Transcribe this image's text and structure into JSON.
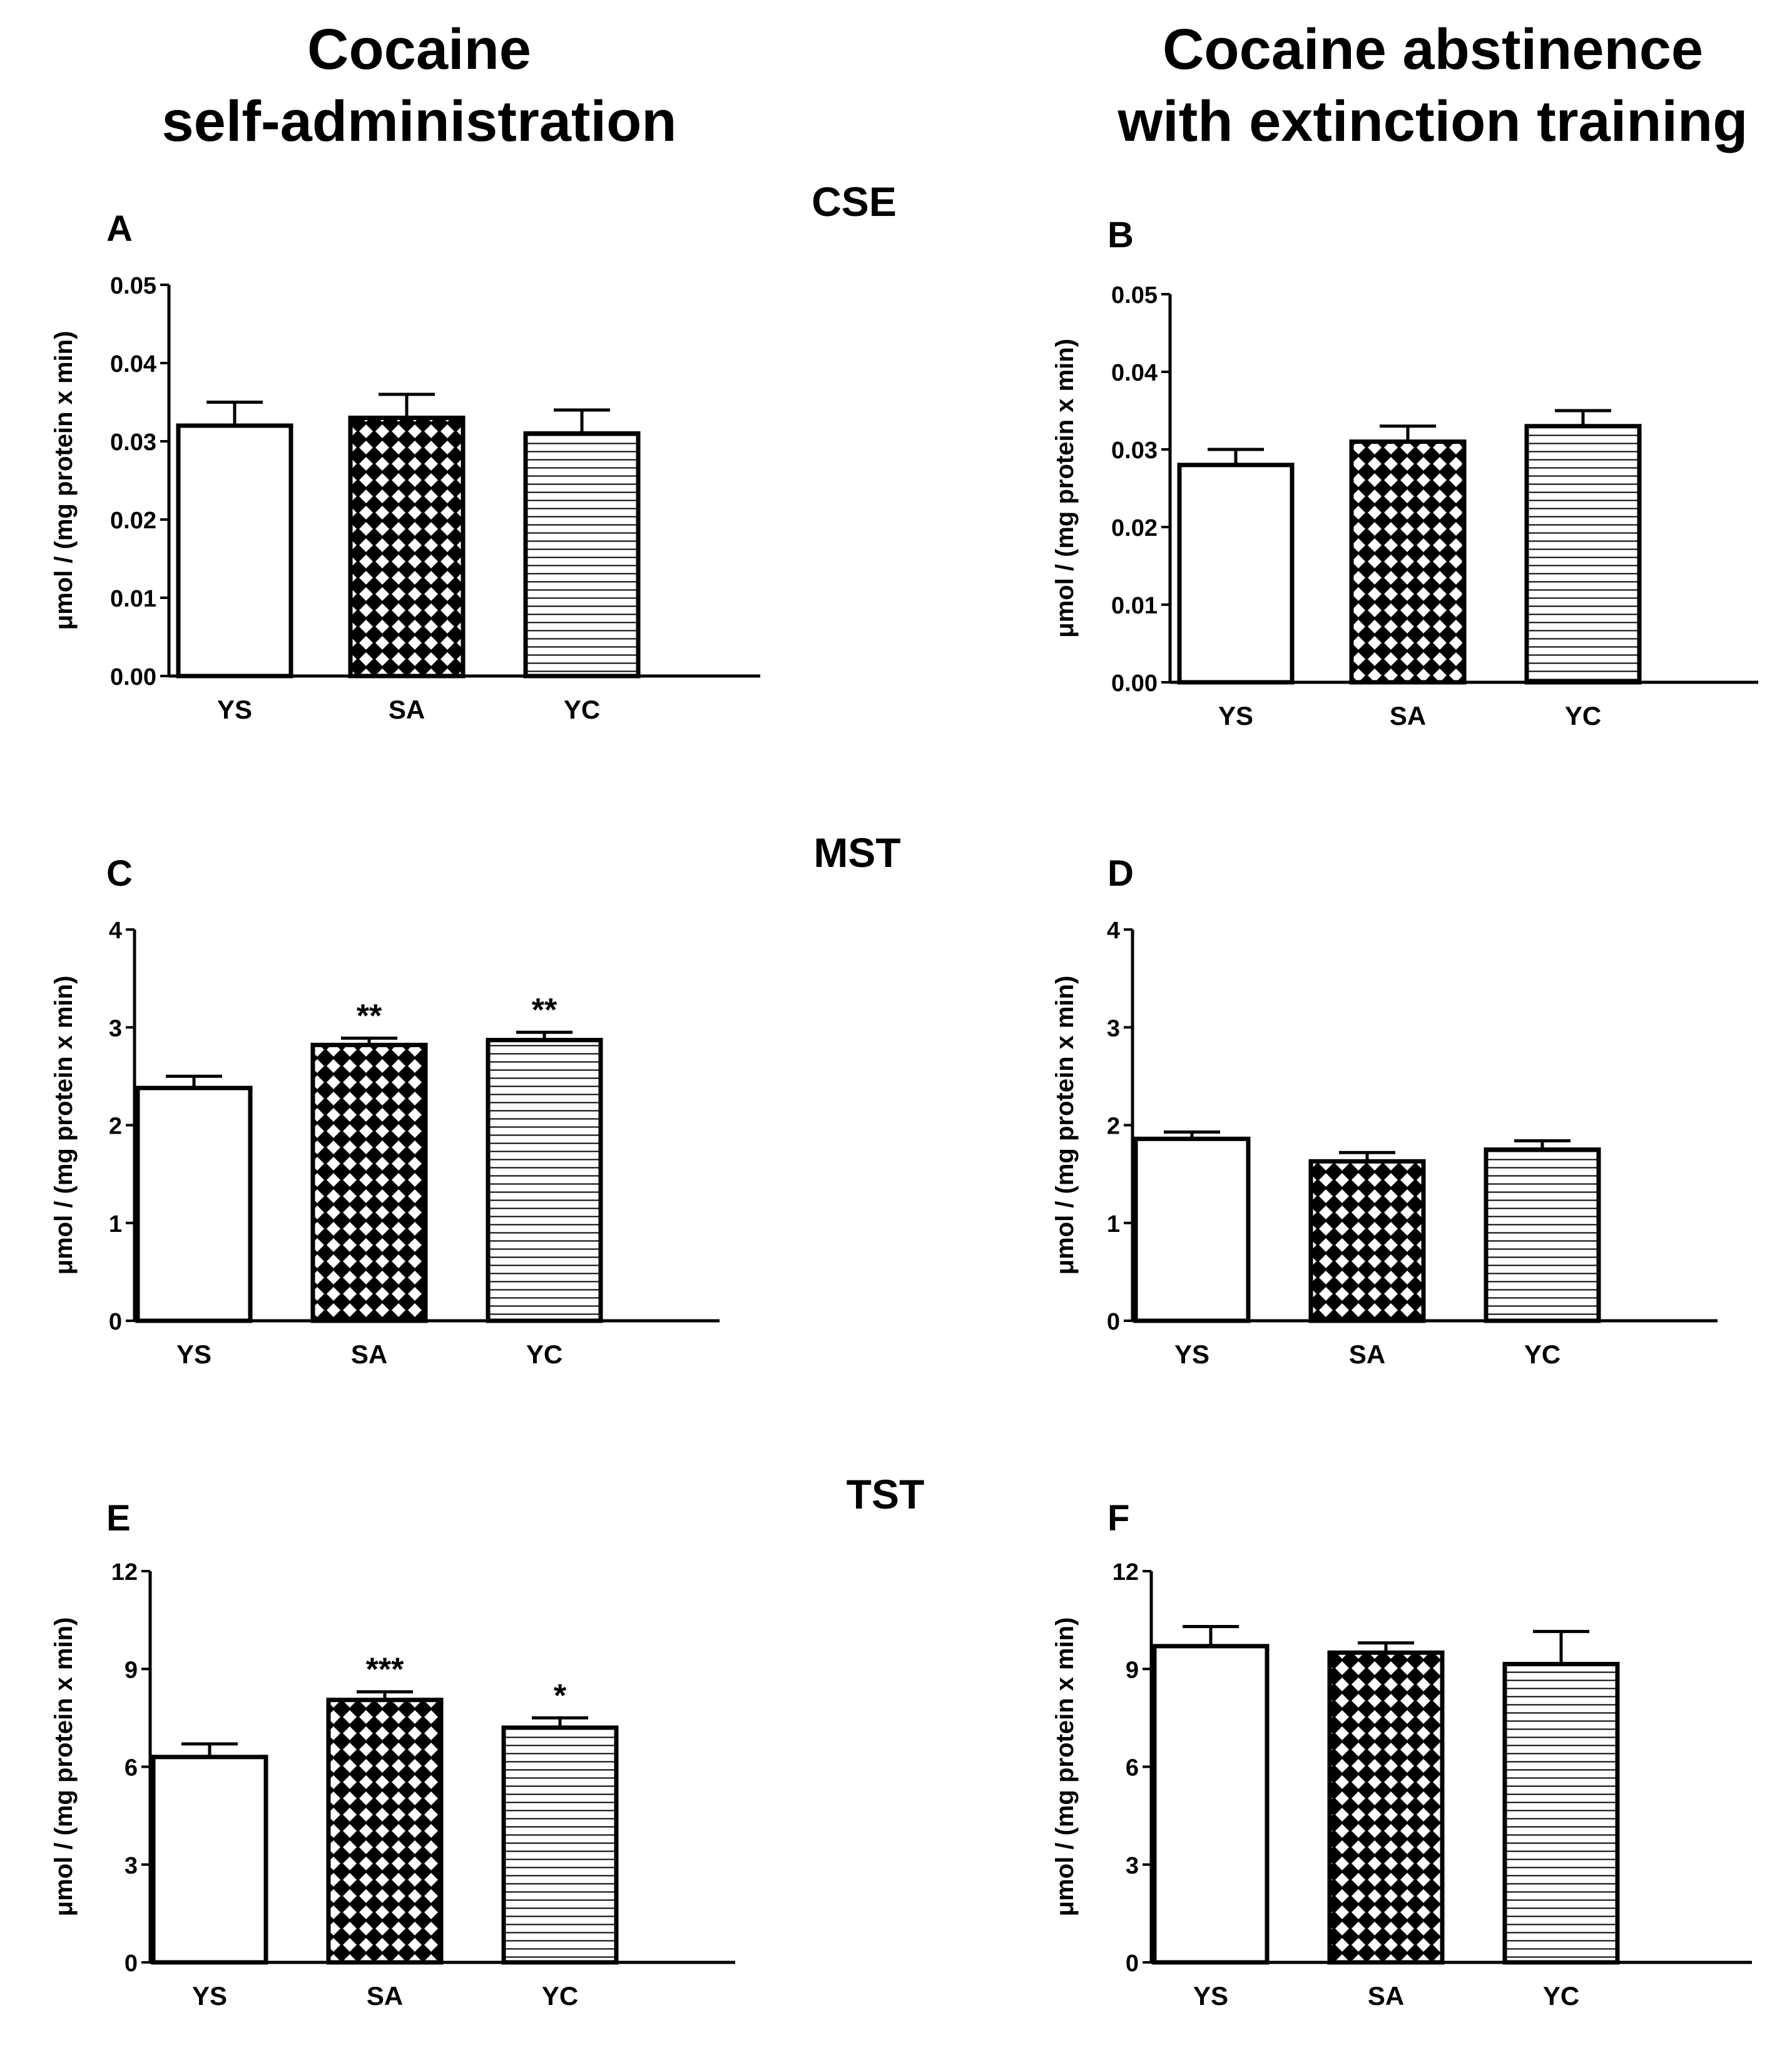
{
  "column_headers": {
    "left_line1": "Cocaine",
    "left_line2": "self-administration",
    "right_line1": "Cocaine abstinence",
    "right_line2": "with extinction training"
  },
  "row_titles": [
    "CSE",
    "MST",
    "TST"
  ],
  "colors": {
    "ink": "#000000",
    "background": "#ffffff"
  },
  "chart_data": [
    {
      "panel": "A",
      "type": "bar",
      "title": "CSE",
      "categories": [
        "YS",
        "SA",
        "YC"
      ],
      "values": [
        0.032,
        0.033,
        0.031
      ],
      "errors": [
        0.003,
        0.003,
        0.003
      ],
      "patterns": [
        "none",
        "crosshatch",
        "horizontal-lines"
      ],
      "significance": [
        "",
        "",
        ""
      ],
      "ylabel": "μmol / (mg protein x min)",
      "ylim": [
        0,
        0.05
      ],
      "yticks": [
        "0.00",
        "0.01",
        "0.02",
        "0.03",
        "0.04",
        "0.05"
      ]
    },
    {
      "panel": "B",
      "type": "bar",
      "title": "CSE",
      "categories": [
        "YS",
        "SA",
        "YC"
      ],
      "values": [
        0.028,
        0.031,
        0.033
      ],
      "errors": [
        0.002,
        0.002,
        0.002
      ],
      "patterns": [
        "none",
        "crosshatch",
        "horizontal-lines"
      ],
      "significance": [
        "",
        "",
        ""
      ],
      "ylabel": "μmol / (mg protein x min)",
      "ylim": [
        0,
        0.05
      ],
      "yticks": [
        "0.00",
        "0.01",
        "0.02",
        "0.03",
        "0.04",
        "0.05"
      ]
    },
    {
      "panel": "C",
      "type": "bar",
      "title": "MST",
      "categories": [
        "YS",
        "SA",
        "YC"
      ],
      "values": [
        2.38,
        2.82,
        2.87
      ],
      "errors": [
        0.12,
        0.07,
        0.08
      ],
      "patterns": [
        "none",
        "crosshatch",
        "horizontal-lines"
      ],
      "significance": [
        "",
        "**",
        "**"
      ],
      "ylabel": "μmol / (mg protein x min)",
      "ylim": [
        0,
        4
      ],
      "yticks": [
        "0",
        "1",
        "2",
        "3",
        "4"
      ]
    },
    {
      "panel": "D",
      "type": "bar",
      "title": "MST",
      "categories": [
        "YS",
        "SA",
        "YC"
      ],
      "values": [
        1.86,
        1.63,
        1.75
      ],
      "errors": [
        0.07,
        0.09,
        0.09
      ],
      "patterns": [
        "none",
        "crosshatch",
        "horizontal-lines"
      ],
      "significance": [
        "",
        "",
        ""
      ],
      "ylabel": "μmol / (mg protein x min)",
      "ylim": [
        0,
        4
      ],
      "yticks": [
        "0",
        "1",
        "2",
        "3",
        "4"
      ]
    },
    {
      "panel": "E",
      "type": "bar",
      "title": "TST",
      "categories": [
        "YS",
        "SA",
        "YC"
      ],
      "values": [
        6.3,
        8.05,
        7.2
      ],
      "errors": [
        0.4,
        0.25,
        0.3
      ],
      "patterns": [
        "none",
        "crosshatch",
        "horizontal-lines"
      ],
      "significance": [
        "",
        "***",
        "*"
      ],
      "ylabel": "μmol / (mg protein x min)",
      "ylim": [
        0,
        12
      ],
      "yticks": [
        "0",
        "3",
        "6",
        "9",
        "12"
      ]
    },
    {
      "panel": "F",
      "type": "bar",
      "title": "TST",
      "categories": [
        "YS",
        "SA",
        "YC"
      ],
      "values": [
        9.7,
        9.5,
        9.15
      ],
      "errors": [
        0.6,
        0.3,
        1.0
      ],
      "patterns": [
        "none",
        "crosshatch",
        "horizontal-lines"
      ],
      "significance": [
        "",
        "",
        ""
      ],
      "ylabel": "μmol / (mg protein x min)",
      "ylim": [
        0,
        12
      ],
      "yticks": [
        "0",
        "3",
        "6",
        "9",
        "12"
      ]
    }
  ]
}
